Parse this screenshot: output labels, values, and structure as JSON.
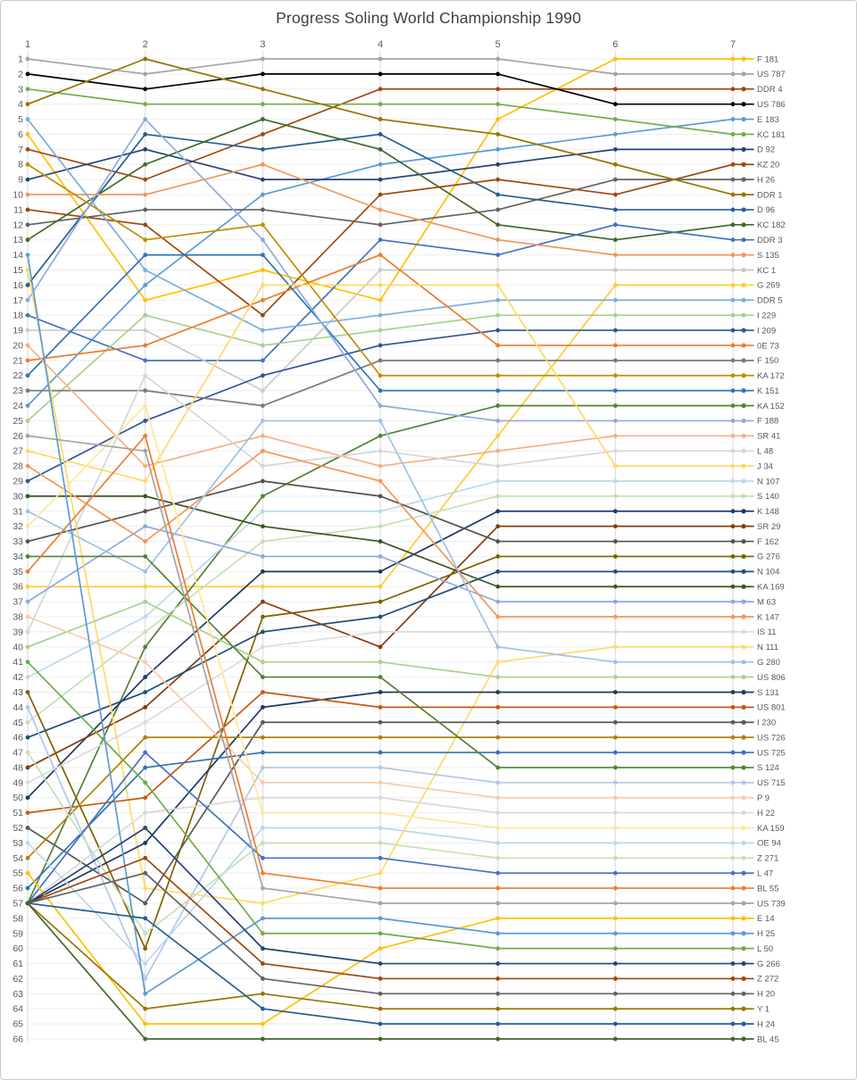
{
  "title": "Progress Soling World Championship 1990",
  "chart_data": {
    "type": "line",
    "subtype": "bump-rank-progress",
    "xlabel": "",
    "ylabel": "",
    "stages": [
      "1",
      "2",
      "3",
      "4",
      "5",
      "6",
      "7"
    ],
    "rank_axis": {
      "min": 1,
      "max": 66,
      "direction": "top-is-best",
      "grid": true
    },
    "legend_position": "right",
    "note_ties": "ten boats tied at rank 57 after race 1",
    "series": [
      {
        "name": "F 181",
        "color": "#FFC000",
        "ranks": [
          6,
          17,
          15,
          17,
          5,
          1,
          1
        ]
      },
      {
        "name": "US 787",
        "color": "#A5A5A5",
        "ranks": [
          1,
          2,
          1,
          1,
          1,
          2,
          2
        ]
      },
      {
        "name": "DDR 4",
        "color": "#A14A10",
        "ranks": [
          7,
          9,
          6,
          3,
          3,
          3,
          3
        ]
      },
      {
        "name": "US 786",
        "color": "#000000",
        "ranks": [
          2,
          3,
          2,
          2,
          2,
          4,
          4
        ]
      },
      {
        "name": "E 183",
        "color": "#5B9BD5",
        "ranks": [
          24,
          16,
          10,
          8,
          7,
          6,
          5
        ]
      },
      {
        "name": "KC 181",
        "color": "#70AD47",
        "ranks": [
          3,
          4,
          4,
          4,
          4,
          5,
          6
        ]
      },
      {
        "name": "D 92",
        "color": "#264478",
        "ranks": [
          9,
          7,
          9,
          9,
          8,
          7,
          7
        ]
      },
      {
        "name": "KZ 20",
        "color": "#9E480E",
        "ranks": [
          11,
          12,
          18,
          10,
          9,
          10,
          8
        ]
      },
      {
        "name": "H 26",
        "color": "#636363",
        "ranks": [
          12,
          11,
          11,
          12,
          11,
          9,
          9
        ]
      },
      {
        "name": "DDR 1",
        "color": "#997300",
        "ranks": [
          4,
          1,
          3,
          5,
          6,
          8,
          10
        ]
      },
      {
        "name": "D 96",
        "color": "#255E91",
        "ranks": [
          16,
          6,
          7,
          6,
          10,
          11,
          11
        ]
      },
      {
        "name": "KC 182",
        "color": "#43682B",
        "ranks": [
          13,
          8,
          5,
          7,
          12,
          13,
          12
        ]
      },
      {
        "name": "DDR 3",
        "color": "#4472C4",
        "ranks": [
          18,
          21,
          21,
          13,
          14,
          12,
          13
        ]
      },
      {
        "name": "S 135",
        "color": "#F1975A",
        "ranks": [
          10,
          10,
          8,
          11,
          13,
          14,
          14
        ]
      },
      {
        "name": "KC 1",
        "color": "#C9C9C9",
        "ranks": [
          19,
          19,
          23,
          15,
          15,
          15,
          15
        ]
      },
      {
        "name": "G 269",
        "color": "#FFCD33",
        "ranks": [
          36,
          36,
          36,
          36,
          26,
          16,
          16
        ]
      },
      {
        "name": "DDR 5",
        "color": "#7CAFDD",
        "ranks": [
          5,
          15,
          19,
          18,
          17,
          17,
          17
        ]
      },
      {
        "name": "I 229",
        "color": "#A9D18E",
        "ranks": [
          25,
          18,
          20,
          19,
          18,
          18,
          18
        ]
      },
      {
        "name": "I 209",
        "color": "#2F5597",
        "ranks": [
          29,
          25,
          22,
          20,
          19,
          19,
          19
        ]
      },
      {
        "name": "0E 73",
        "color": "#ED7D31",
        "ranks": [
          21,
          20,
          17,
          14,
          20,
          20,
          20
        ]
      },
      {
        "name": "F 150",
        "color": "#7B7B7B",
        "ranks": [
          23,
          23,
          24,
          21,
          21,
          21,
          21
        ]
      },
      {
        "name": "KA 172",
        "color": "#BF8F00",
        "ranks": [
          8,
          13,
          12,
          22,
          22,
          22,
          22
        ]
      },
      {
        "name": "K 151",
        "color": "#2E75B6",
        "ranks": [
          22,
          14,
          14,
          23,
          23,
          23,
          23
        ]
      },
      {
        "name": "KA 152",
        "color": "#548235",
        "ranks": [
          57,
          40,
          30,
          26,
          24,
          24,
          24
        ]
      },
      {
        "name": "F 188",
        "color": "#8FAADC",
        "ranks": [
          17,
          5,
          13,
          24,
          25,
          25,
          25
        ]
      },
      {
        "name": "SR 41",
        "color": "#F4B183",
        "ranks": [
          20,
          28,
          26,
          28,
          27,
          26,
          26
        ]
      },
      {
        "name": "L 48",
        "color": "#D6D6D6",
        "ranks": [
          39,
          22,
          28,
          27,
          28,
          27,
          27
        ]
      },
      {
        "name": "J 34",
        "color": "#FFD966",
        "ranks": [
          27,
          29,
          16,
          16,
          16,
          28,
          28
        ]
      },
      {
        "name": "N 107",
        "color": "#BDD7EE",
        "ranks": [
          42,
          38,
          31,
          31,
          29,
          29,
          29
        ]
      },
      {
        "name": "S 140",
        "color": "#C5E0B4",
        "ranks": [
          45,
          39,
          33,
          32,
          30,
          30,
          30
        ]
      },
      {
        "name": "K 148",
        "color": "#203864",
        "ranks": [
          50,
          42,
          35,
          35,
          31,
          31,
          31
        ]
      },
      {
        "name": "SR  29",
        "color": "#843C0C",
        "ranks": [
          48,
          44,
          37,
          40,
          32,
          32,
          32
        ]
      },
      {
        "name": "F 162",
        "color": "#525252",
        "ranks": [
          33,
          31,
          29,
          30,
          33,
          33,
          33
        ]
      },
      {
        "name": "G 276",
        "color": "#7F6000",
        "ranks": [
          43,
          60,
          38,
          37,
          34,
          34,
          34
        ]
      },
      {
        "name": "N 104",
        "color": "#1F4E79",
        "ranks": [
          46,
          43,
          39,
          38,
          35,
          35,
          35
        ]
      },
      {
        "name": "KA 169",
        "color": "#385723",
        "ranks": [
          30,
          30,
          32,
          33,
          36,
          36,
          36
        ]
      },
      {
        "name": "M 63",
        "color": "#8EAADB",
        "ranks": [
          37,
          32,
          34,
          34,
          37,
          37,
          37
        ]
      },
      {
        "name": "K 147",
        "color": "#F1975A",
        "ranks": [
          28,
          33,
          27,
          29,
          38,
          38,
          38
        ]
      },
      {
        "name": "IS 11",
        "color": "#DBDBDB",
        "ranks": [
          49,
          45,
          40,
          39,
          39,
          39,
          39
        ]
      },
      {
        "name": "N 111",
        "color": "#FFDA66",
        "ranks": [
          15,
          56,
          57,
          55,
          41,
          40,
          40
        ]
      },
      {
        "name": "G 280",
        "color": "#9DC3E6",
        "ranks": [
          31,
          35,
          25,
          25,
          40,
          41,
          41
        ]
      },
      {
        "name": "US 806",
        "color": "#A9D18E",
        "ranks": [
          40,
          37,
          41,
          41,
          42,
          42,
          42
        ]
      },
      {
        "name": "S 131",
        "color": "#1F3864",
        "ranks": [
          57,
          53,
          44,
          43,
          43,
          43,
          43
        ]
      },
      {
        "name": "US 801",
        "color": "#C55A11",
        "ranks": [
          51,
          50,
          43,
          44,
          44,
          44,
          44
        ]
      },
      {
        "name": "I 230",
        "color": "#595959",
        "ranks": [
          52,
          57,
          45,
          45,
          45,
          45,
          45
        ]
      },
      {
        "name": "US 726",
        "color": "#AD8400",
        "ranks": [
          54,
          46,
          46,
          46,
          46,
          46,
          46
        ]
      },
      {
        "name": "US 725",
        "color": "#2E75B6",
        "ranks": [
          56,
          48,
          47,
          47,
          47,
          47,
          47
        ]
      },
      {
        "name": "S 124",
        "color": "#538135",
        "ranks": [
          34,
          34,
          42,
          42,
          48,
          48,
          48
        ]
      },
      {
        "name": "US 715",
        "color": "#B4C7E7",
        "ranks": [
          44,
          62,
          48,
          48,
          49,
          49,
          49
        ]
      },
      {
        "name": "P 9",
        "color": "#F8CBAD",
        "ranks": [
          38,
          41,
          49,
          49,
          50,
          50,
          50
        ]
      },
      {
        "name": "H 22",
        "color": "#D9D9D9",
        "ranks": [
          57,
          51,
          50,
          50,
          51,
          51,
          51
        ]
      },
      {
        "name": "KA 159",
        "color": "#FFE699",
        "ranks": [
          32,
          24,
          51,
          51,
          52,
          52,
          52
        ]
      },
      {
        "name": "OE 94",
        "color": "#BDD7EE",
        "ranks": [
          53,
          61,
          52,
          52,
          53,
          53,
          53
        ]
      },
      {
        "name": "Z 271",
        "color": "#C5E0B4",
        "ranks": [
          47,
          59,
          53,
          53,
          54,
          54,
          54
        ]
      },
      {
        "name": "L 47",
        "color": "#4472C4",
        "ranks": [
          57,
          47,
          54,
          54,
          55,
          55,
          55
        ]
      },
      {
        "name": "BL 55",
        "color": "#ED7D31",
        "ranks": [
          35,
          26,
          55,
          56,
          56,
          56,
          56
        ]
      },
      {
        "name": "US 739",
        "color": "#A5A5A5",
        "ranks": [
          26,
          27,
          56,
          57,
          57,
          57,
          57
        ]
      },
      {
        "name": "E 14",
        "color": "#FFC000",
        "ranks": [
          55,
          65,
          65,
          60,
          58,
          58,
          58
        ]
      },
      {
        "name": "H 25",
        "color": "#5B9BD5",
        "ranks": [
          14,
          63,
          58,
          58,
          59,
          59,
          59
        ]
      },
      {
        "name": "L 50",
        "color": "#70AD47",
        "ranks": [
          41,
          49,
          59,
          59,
          60,
          60,
          60
        ]
      },
      {
        "name": "G 266",
        "color": "#264478",
        "ranks": [
          57,
          52,
          60,
          61,
          61,
          61,
          61
        ]
      },
      {
        "name": "Z 272",
        "color": "#9E480E",
        "ranks": [
          57,
          54,
          61,
          62,
          62,
          62,
          62
        ]
      },
      {
        "name": "H 20",
        "color": "#636363",
        "ranks": [
          57,
          55,
          62,
          63,
          63,
          63,
          63
        ]
      },
      {
        "name": "Y 1",
        "color": "#997300",
        "ranks": [
          57,
          64,
          63,
          64,
          64,
          64,
          64
        ]
      },
      {
        "name": "H 24",
        "color": "#255E91",
        "ranks": [
          57,
          58,
          64,
          65,
          65,
          65,
          65
        ]
      },
      {
        "name": "BL 45",
        "color": "#43682B",
        "ranks": [
          57,
          66,
          66,
          66,
          66,
          66,
          66
        ]
      }
    ],
    "colors": {
      "grid_vertical": "#D9D9D9",
      "grid_horizontal": "#EDEDED",
      "axis_text": "#595959",
      "title_text": "#404040"
    }
  }
}
